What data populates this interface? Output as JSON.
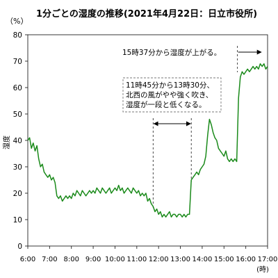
{
  "chart_data": {
    "type": "line",
    "title": "1分ごとの湿度の推移(2021年4月22日：日立市役所)",
    "y_unit": "（%）",
    "ylabel": "湿度",
    "xlabel": "(時)",
    "xlim": [
      "6:00",
      "17:00"
    ],
    "ylim": [
      0,
      80
    ],
    "x_ticks": [
      "6:00",
      "7:00",
      "8:00",
      "9:00",
      "10:00",
      "11:00",
      "12:00",
      "13:00",
      "14:00",
      "15:00",
      "16:00",
      "17:00"
    ],
    "y_ticks": [
      0,
      10,
      20,
      30,
      40,
      50,
      60,
      70,
      80
    ],
    "grid": false,
    "x": [
      "6:00",
      "6:05",
      "6:10",
      "6:15",
      "6:20",
      "6:25",
      "6:30",
      "6:35",
      "6:40",
      "6:45",
      "6:50",
      "6:55",
      "7:00",
      "7:05",
      "7:10",
      "7:15",
      "7:20",
      "7:25",
      "7:30",
      "7:35",
      "7:40",
      "7:45",
      "7:50",
      "7:55",
      "8:00",
      "8:05",
      "8:10",
      "8:15",
      "8:20",
      "8:25",
      "8:30",
      "8:35",
      "8:40",
      "8:45",
      "8:50",
      "8:55",
      "9:00",
      "9:05",
      "9:10",
      "9:15",
      "9:20",
      "9:25",
      "9:30",
      "9:35",
      "9:40",
      "9:45",
      "9:50",
      "9:55",
      "10:00",
      "10:05",
      "10:10",
      "10:15",
      "10:20",
      "10:25",
      "10:30",
      "10:35",
      "10:40",
      "10:45",
      "10:50",
      "10:55",
      "11:00",
      "11:05",
      "11:10",
      "11:15",
      "11:20",
      "11:25",
      "11:30",
      "11:35",
      "11:40",
      "11:45",
      "11:50",
      "11:55",
      "12:00",
      "12:05",
      "12:10",
      "12:15",
      "12:20",
      "12:25",
      "12:30",
      "12:35",
      "12:40",
      "12:45",
      "12:50",
      "12:55",
      "13:00",
      "13:05",
      "13:10",
      "13:15",
      "13:20",
      "13:25",
      "13:30",
      "13:35",
      "13:40",
      "13:45",
      "13:50",
      "13:55",
      "14:00",
      "14:05",
      "14:10",
      "14:15",
      "14:20",
      "14:25",
      "14:30",
      "14:35",
      "14:40",
      "14:45",
      "14:50",
      "14:55",
      "15:00",
      "15:05",
      "15:10",
      "15:15",
      "15:20",
      "15:25",
      "15:30",
      "15:35",
      "15:40",
      "15:45",
      "15:50",
      "15:55",
      "16:00",
      "16:05",
      "16:10",
      "16:15",
      "16:20",
      "16:25",
      "16:30",
      "16:35",
      "16:40",
      "16:45",
      "16:50",
      "16:55",
      "17:00"
    ],
    "series": [
      {
        "color": "#1a8a1a",
        "values": [
          40,
          41,
          37,
          39,
          36,
          38,
          33,
          30,
          31,
          28,
          27,
          26,
          27,
          25,
          26,
          24,
          19,
          18,
          19,
          17,
          18,
          19,
          18,
          19,
          18,
          20,
          19,
          21,
          20,
          19,
          21,
          20,
          19,
          20,
          21,
          20,
          21,
          20,
          22,
          21,
          20,
          22,
          21,
          20,
          21,
          22,
          20,
          21,
          22,
          21,
          23,
          21,
          22,
          20,
          21,
          22,
          21,
          20,
          22,
          21,
          20,
          21,
          19,
          20,
          19,
          20,
          17,
          18,
          16,
          15,
          13,
          14,
          12,
          13,
          11,
          12,
          11,
          12,
          13,
          11,
          12,
          12,
          11,
          12,
          12,
          11,
          12,
          11,
          12,
          12,
          25,
          26,
          27,
          28,
          27,
          29,
          30,
          31,
          34,
          42,
          48,
          46,
          43,
          41,
          40,
          37,
          36,
          35,
          34,
          36,
          33,
          32,
          33,
          32,
          33,
          32,
          56,
          64,
          66,
          65,
          66,
          67,
          66,
          67,
          68,
          67,
          68,
          67,
          69,
          68,
          69,
          67,
          68
        ]
      }
    ],
    "annotations": {
      "rise_note": "15時37分から湿度が上がる。",
      "rise_time": "15:37",
      "wind_note": [
        "11時45分から13時30分、",
        "北西の風がやや強く吹き、",
        "湿度が一段と低くなる。"
      ],
      "wind_period": [
        "11:45",
        "13:30"
      ]
    }
  }
}
